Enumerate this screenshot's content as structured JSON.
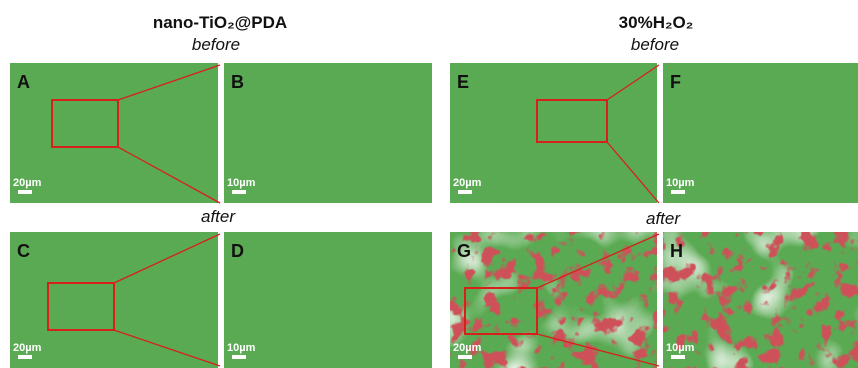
{
  "groups": [
    {
      "title": "nano-TiO₂@PDA",
      "before": "before",
      "after": "after",
      "panels": [
        {
          "label": "A",
          "scale": "20µm"
        },
        {
          "label": "B",
          "scale": "10µm"
        },
        {
          "label": "C",
          "scale": "20µm"
        },
        {
          "label": "D",
          "scale": "10µm"
        }
      ]
    },
    {
      "title": "30%H₂O₂",
      "before": "before",
      "after": "after",
      "panels": [
        {
          "label": "E",
          "scale": "20µm"
        },
        {
          "label": "F",
          "scale": "10µm"
        },
        {
          "label": "G",
          "scale": "20µm"
        },
        {
          "label": "H",
          "scale": "10µm"
        }
      ]
    }
  ]
}
